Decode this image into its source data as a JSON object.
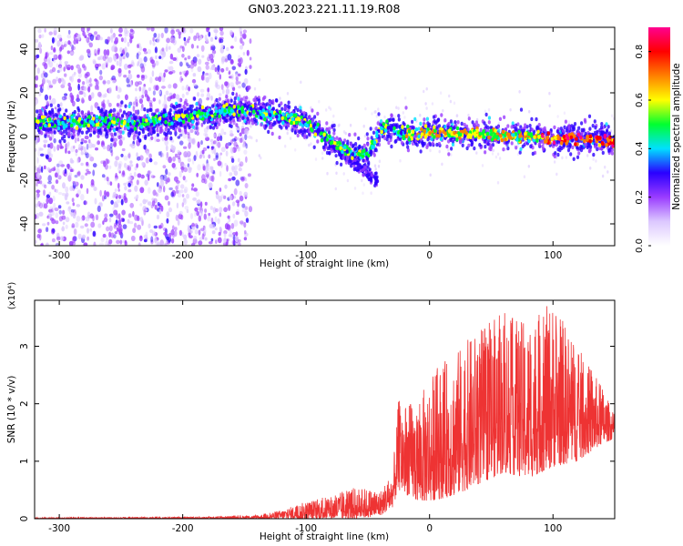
{
  "figure": {
    "title": "GN03.2023.221.11.19.R08"
  },
  "chart_data": [
    {
      "type": "heatmap",
      "xlabel": "Height of straight line (km)",
      "ylabel": "Frequency (Hz)",
      "xlim": [
        -320,
        150
      ],
      "ylim": [
        -50,
        50
      ],
      "xticks": [
        -300,
        -200,
        -100,
        0,
        100
      ],
      "yticks": [
        -40,
        -20,
        0,
        20,
        40
      ],
      "grid": false,
      "colorbar": {
        "label": "Normalized spectral amplitude",
        "range": [
          0,
          0.9
        ],
        "ticks": [
          0.0,
          0.2,
          0.4,
          0.6,
          0.8
        ],
        "colormap": [
          "#ffffff",
          "#dcc8ff",
          "#9a3cff",
          "#2a00ff",
          "#00e0ff",
          "#00ff30",
          "#ffff00",
          "#ff8000",
          "#ff0000",
          "#ff0090"
        ]
      },
      "signal_trace": {
        "x": [
          -320,
          -300,
          -260,
          -230,
          -200,
          -170,
          -150,
          -130,
          -110,
          -100,
          -90,
          -80,
          -70,
          -60,
          -50,
          -40,
          -30,
          -20,
          0,
          20,
          40,
          60,
          80,
          100,
          120,
          150
        ],
        "y": [
          7,
          6,
          7,
          6,
          9,
          11,
          12,
          10,
          8,
          6,
          3,
          -2,
          -6,
          -8,
          -9,
          3,
          4,
          1,
          2,
          1,
          1,
          0,
          0,
          -1,
          -1,
          -2
        ]
      }
    },
    {
      "type": "line",
      "xlabel": "Height of straight line (km)",
      "ylabel": "SNR (10 * v/v)",
      "yscale_label": "(x10⁴)",
      "xlim": [
        -320,
        150
      ],
      "ylim": [
        0,
        3.8
      ],
      "xticks": [
        -300,
        -200,
        -100,
        0,
        100
      ],
      "yticks": [
        0,
        1,
        2,
        3
      ],
      "color": "#ee3333",
      "envelope": {
        "x": [
          -320,
          -200,
          -140,
          -120,
          -100,
          -80,
          -60,
          -40,
          -30,
          -25,
          -10,
          0,
          20,
          40,
          60,
          80,
          100,
          120,
          140,
          150
        ],
        "low": [
          0,
          0,
          0,
          0,
          0,
          0,
          0,
          0.05,
          0.2,
          0.5,
          0.3,
          0.3,
          0.4,
          0.6,
          0.8,
          0.7,
          0.9,
          1.0,
          1.3,
          1.4
        ],
        "high": [
          0.02,
          0.03,
          0.06,
          0.15,
          0.3,
          0.4,
          0.55,
          0.5,
          0.8,
          2.1,
          2.0,
          2.5,
          2.9,
          3.3,
          3.6,
          3.4,
          3.8,
          3.0,
          2.3,
          1.8
        ]
      }
    }
  ]
}
